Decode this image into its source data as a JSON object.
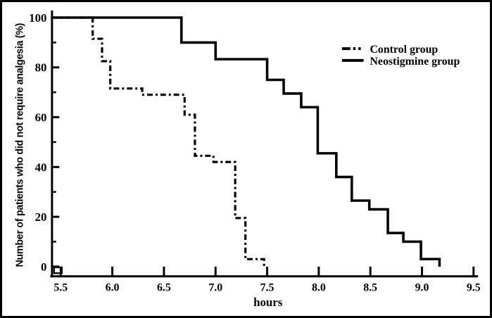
{
  "figure": {
    "background_color": "#ffffff",
    "frame_color": "#000000",
    "line_color": "#000000"
  },
  "chart_data": {
    "type": "line",
    "subtype": "kaplan-meier-step-survival",
    "title": "",
    "xlabel": "hours",
    "ylabel": "Number of patients who did not require analgesia  (%)",
    "xlim": [
      5.5,
      9.5
    ],
    "ylim": [
      0,
      100
    ],
    "x_ticks": [
      5.5,
      6.0,
      6.5,
      7.0,
      7.5,
      8.0,
      8.5,
      9.0,
      9.5
    ],
    "x_tick_labels": [
      "5.5",
      "6.0",
      "6.5",
      "7.0",
      "7.5",
      "8.0",
      "8.5",
      "9.0",
      "9.5"
    ],
    "y_ticks": [
      0,
      20,
      40,
      60,
      80,
      100
    ],
    "y_tick_labels": [
      "0",
      "20",
      "40",
      "60",
      "80",
      "100"
    ],
    "y_minor_ticks": [
      10,
      30,
      50,
      70,
      90
    ],
    "grid": "off",
    "legend_position": "upper-right-inside",
    "series": [
      {
        "name": "Control group",
        "line_style": "dash-dot",
        "color": "#000000",
        "steps_note": "each entry = [hour of drop, percent after drop]; curve starts at 100%",
        "steps": [
          [
            5.5,
            100
          ],
          [
            5.81,
            91.5
          ],
          [
            5.9,
            82.5
          ],
          [
            5.98,
            71.5
          ],
          [
            6.29,
            69
          ],
          [
            6.7,
            61
          ],
          [
            6.8,
            44.5
          ],
          [
            6.98,
            42
          ],
          [
            7.19,
            19.5
          ],
          [
            7.29,
            3
          ],
          [
            7.47,
            0
          ]
        ]
      },
      {
        "name": "Neostigmine group",
        "line_style": "solid",
        "color": "#000000",
        "steps_note": "each entry = [hour of drop, percent after drop]; curve starts at 100%",
        "steps": [
          [
            5.5,
            100
          ],
          [
            6.67,
            90
          ],
          [
            7.0,
            83.3
          ],
          [
            7.5,
            75
          ],
          [
            7.66,
            69.5
          ],
          [
            7.83,
            64
          ],
          [
            7.99,
            45.5
          ],
          [
            8.17,
            36
          ],
          [
            8.32,
            26.5
          ],
          [
            8.49,
            23
          ],
          [
            8.67,
            13.5
          ],
          [
            8.82,
            10
          ],
          [
            8.99,
            3
          ],
          [
            9.17,
            0
          ]
        ]
      }
    ]
  }
}
